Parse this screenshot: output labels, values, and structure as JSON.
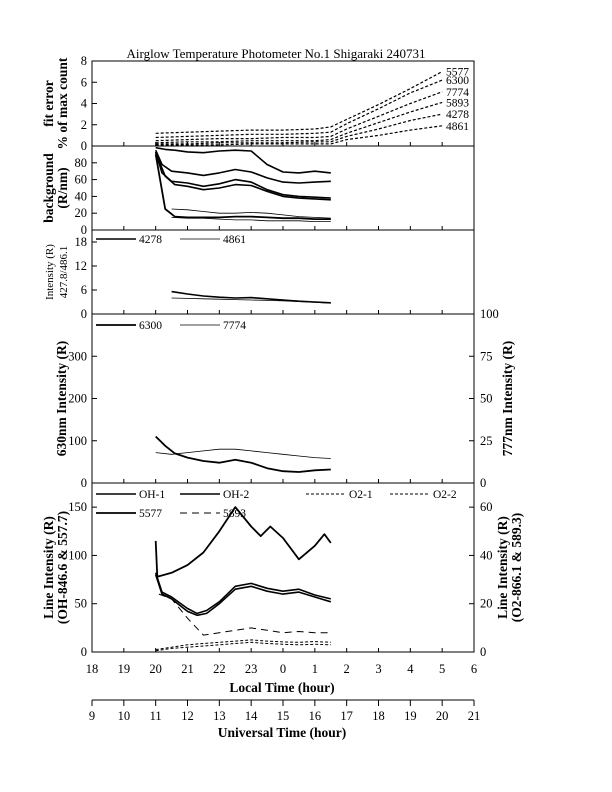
{
  "title": "Airglow Temperature Photometer No.1  Shigaraki  240731",
  "x_axes": {
    "local": {
      "label": "Local Time (hour)",
      "ticks": [
        "18",
        "19",
        "20",
        "21",
        "22",
        "23",
        "0",
        "1",
        "2",
        "3",
        "4",
        "5",
        "6"
      ]
    },
    "universal": {
      "label": "Universal Time (hour)",
      "ticks": [
        "9",
        "10",
        "11",
        "12",
        "13",
        "14",
        "15",
        "16",
        "17",
        "18",
        "19",
        "20",
        "21"
      ]
    }
  },
  "chart_data": [
    {
      "type": "line",
      "panel": "fit-error",
      "ylabel_lines": [
        "fit error",
        "% of max count"
      ],
      "ylim": [
        0,
        8
      ],
      "yticks": [
        "0",
        "2",
        "4",
        "6",
        "8"
      ],
      "xlim": [
        18,
        30
      ],
      "series": [
        {
          "name": "5577",
          "dash": "3,2",
          "x": [
            20,
            21,
            22,
            23,
            24,
            25,
            25.5,
            26,
            27,
            28,
            29
          ],
          "y": [
            1.2,
            1.3,
            1.4,
            1.5,
            1.5,
            1.6,
            1.8,
            2.5,
            3.9,
            5.4,
            7.0
          ]
        },
        {
          "name": "6300",
          "dash": "3,2",
          "x": [
            20,
            21,
            22,
            23,
            24,
            25,
            25.5,
            26,
            27,
            28,
            29
          ],
          "y": [
            0.8,
            0.9,
            1.0,
            1.1,
            1.1,
            1.2,
            1.3,
            2.1,
            3.5,
            5.0,
            6.2
          ]
        },
        {
          "name": "7774",
          "dash": "3,2",
          "x": [
            20,
            21,
            22,
            23,
            24,
            25,
            25.5,
            26,
            27,
            28,
            29
          ],
          "y": [
            0.5,
            0.6,
            0.7,
            0.7,
            0.8,
            0.8,
            0.9,
            1.6,
            2.8,
            4.0,
            5.1
          ]
        },
        {
          "name": "5893",
          "dash": "3,2",
          "x": [
            20,
            21,
            22,
            23,
            24,
            25,
            25.5,
            26,
            27,
            28,
            29
          ],
          "y": [
            0.3,
            0.4,
            0.4,
            0.5,
            0.5,
            0.5,
            0.6,
            1.2,
            2.2,
            3.2,
            4.1
          ]
        },
        {
          "name": "4278",
          "dash": "3,2",
          "x": [
            20,
            21,
            22,
            23,
            24,
            25,
            25.5,
            26,
            27,
            28,
            29
          ],
          "y": [
            0.2,
            0.2,
            0.3,
            0.3,
            0.3,
            0.4,
            0.4,
            0.9,
            1.6,
            2.4,
            3.0
          ]
        },
        {
          "name": "4861",
          "dash": "3,2",
          "x": [
            20,
            21,
            22,
            23,
            24,
            25,
            25.5,
            26,
            27,
            28,
            29
          ],
          "y": [
            0.1,
            0.1,
            0.1,
            0.2,
            0.2,
            0.2,
            0.2,
            0.6,
            1.0,
            1.5,
            1.9
          ]
        }
      ]
    },
    {
      "type": "line",
      "panel": "background",
      "ylabel_lines": [
        "background",
        "(R/nm)"
      ],
      "ylim": [
        0,
        100
      ],
      "yticks": [
        "0",
        "20",
        "40",
        "60",
        "80"
      ],
      "xlim": [
        18,
        30
      ],
      "series": [
        {
          "x": [
            20,
            20.3,
            20.6,
            21,
            21.5,
            22,
            22.5,
            23,
            23.5,
            24,
            24.5,
            25,
            25.5
          ],
          "y": [
            98,
            96,
            95,
            93,
            92,
            94,
            95,
            94,
            78,
            69,
            68,
            70,
            68
          ],
          "width": 1.6
        },
        {
          "x": [
            20,
            20.2,
            20.5,
            21,
            21.5,
            22,
            22.5,
            23,
            23.5,
            24,
            24.5,
            25,
            25.5
          ],
          "y": [
            95,
            78,
            70,
            68,
            65,
            68,
            72,
            69,
            62,
            57,
            56,
            57,
            58
          ],
          "width": 1.6
        },
        {
          "x": [
            20,
            20.2,
            20.5,
            21,
            21.5,
            22,
            22.5,
            23,
            23.5,
            24,
            24.5,
            25,
            25.5
          ],
          "y": [
            93,
            68,
            58,
            56,
            52,
            55,
            60,
            57,
            48,
            42,
            40,
            39,
            38
          ],
          "width": 1.6
        },
        {
          "x": [
            20,
            20.3,
            20.6,
            21,
            21.5,
            22,
            22.5,
            23,
            23.5,
            24,
            24.5,
            25,
            25.5
          ],
          "y": [
            92,
            64,
            54,
            52,
            48,
            50,
            54,
            53,
            46,
            40,
            38,
            37,
            36
          ],
          "width": 1.6
        },
        {
          "x": [
            20,
            20.3,
            20.6,
            21,
            21.5,
            22,
            22.5,
            23,
            23.5,
            24,
            24.5,
            25,
            25.5
          ],
          "y": [
            90,
            25,
            16,
            15,
            15,
            15,
            16,
            16,
            15,
            14,
            14,
            13,
            13
          ],
          "width": 1.8
        },
        {
          "x": [
            20.5,
            21,
            21.5,
            22,
            22.5,
            23,
            23.5,
            24,
            24.5,
            25,
            25.5
          ],
          "y": [
            25,
            24,
            22,
            20,
            20,
            21,
            20,
            18,
            16,
            15,
            14
          ],
          "width": 0.8
        },
        {
          "x": [
            20.5,
            21,
            21.5,
            22,
            22.5,
            23,
            23.5,
            24,
            24.5,
            25,
            25.5
          ],
          "y": [
            15,
            14,
            14,
            13,
            12,
            12,
            11,
            11,
            11,
            10,
            10
          ],
          "width": 0.8
        }
      ]
    },
    {
      "type": "line",
      "panel": "blue-lines",
      "ylabel_lines": [
        "Intensity (R)",
        "427.8/486.1"
      ],
      "ylim": [
        0,
        21
      ],
      "yticks": [
        "0",
        "6",
        "12",
        "18"
      ],
      "xlim": [
        18,
        30
      ],
      "series": [
        {
          "name": "4278",
          "x": [
            20.5,
            21,
            21.5,
            22,
            22.5,
            23,
            23.5,
            24,
            24.5,
            25,
            25.5
          ],
          "y": [
            5.6,
            5.0,
            4.5,
            4.2,
            4.0,
            4.1,
            3.8,
            3.5,
            3.2,
            3.0,
            2.8
          ],
          "width": 1.6
        },
        {
          "name": "4861",
          "x": [
            20.5,
            21,
            21.5,
            22,
            22.5,
            23,
            23.5,
            24,
            24.5,
            25,
            25.5
          ],
          "y": [
            4.0,
            3.9,
            3.8,
            3.7,
            3.6,
            3.5,
            3.4,
            3.3,
            3.1,
            2.9,
            2.7
          ],
          "width": 0.8
        }
      ]
    },
    {
      "type": "line",
      "panel": "oxygen-lines",
      "ylabel": "630nm Intensity (R)",
      "ylim": [
        0,
        400
      ],
      "yticks": [
        "0",
        "100",
        "200",
        "300"
      ],
      "y2label": "777nm Intensity (R)",
      "y2lim": [
        0,
        100
      ],
      "y2ticks": [
        "0",
        "25",
        "50",
        "75",
        "100"
      ],
      "xlim": [
        18,
        30
      ],
      "series": [
        {
          "name": "6300",
          "axis": "left",
          "x": [
            20,
            20.3,
            20.6,
            21,
            21.5,
            22,
            22.5,
            23,
            23.5,
            24,
            24.5,
            25,
            25.5
          ],
          "y": [
            110,
            88,
            70,
            60,
            52,
            48,
            55,
            48,
            35,
            28,
            26,
            30,
            32
          ],
          "width": 1.8
        },
        {
          "name": "7774",
          "axis": "right",
          "x": [
            20,
            20.5,
            21,
            21.5,
            22,
            22.5,
            23,
            23.5,
            24,
            24.5,
            25,
            25.5
          ],
          "y": [
            18,
            17,
            18,
            19,
            20,
            20,
            19,
            18,
            17,
            16,
            15,
            14.5
          ],
          "width": 0.8
        }
      ]
    },
    {
      "type": "line",
      "panel": "line-intensities",
      "ylabel_lines": [
        "Line Intensity (R)",
        "(OH-846.6 & 557.7)"
      ],
      "ylim": [
        0,
        175
      ],
      "yticks": [
        "0",
        "50",
        "100",
        "150"
      ],
      "y2label_lines": [
        "Line Intensity (R)",
        "(O2-866.1 & 589.3)"
      ],
      "y2lim": [
        0,
        70
      ],
      "y2ticks": [
        "0",
        "20",
        "40",
        "60"
      ],
      "xlim": [
        18,
        30
      ],
      "legend": [
        "OH-1",
        "OH-2",
        "O2-1",
        "O2-2",
        "5577",
        "5893"
      ],
      "series": [
        {
          "name": "OH-1",
          "axis": "left",
          "x": [
            20,
            20.2,
            20.5,
            21,
            21.3,
            21.6,
            22,
            22.5,
            23,
            23.5,
            24,
            24.5,
            25,
            25.5
          ],
          "y": [
            80,
            60,
            55,
            42,
            38,
            40,
            50,
            65,
            68,
            63,
            60,
            62,
            57,
            52
          ],
          "width": 1.6
        },
        {
          "name": "OH-2",
          "axis": "left",
          "x": [
            20,
            20.2,
            20.5,
            21,
            21.3,
            21.6,
            22,
            22.5,
            23,
            23.5,
            24,
            24.5,
            25,
            25.5
          ],
          "y": [
            82,
            62,
            57,
            45,
            40,
            43,
            52,
            68,
            71,
            66,
            63,
            65,
            59,
            55
          ],
          "width": 1.6
        },
        {
          "name": "O2-1",
          "axis": "right",
          "dash": "3,2",
          "x": [
            20,
            20.5,
            21,
            21.5,
            22,
            22.5,
            23,
            23.5,
            24,
            24.5,
            25,
            25.5
          ],
          "y": [
            0.5,
            1.5,
            2.0,
            2.5,
            3.0,
            3.5,
            4.0,
            3.5,
            3.2,
            3.0,
            3.2,
            3.0
          ],
          "width": 1.0
        },
        {
          "name": "O2-2",
          "axis": "right",
          "dash": "3,2",
          "x": [
            20,
            20.5,
            21,
            21.5,
            22,
            22.5,
            23,
            23.5,
            24,
            24.5,
            25,
            25.5
          ],
          "y": [
            1.0,
            2.0,
            3.0,
            3.5,
            4.0,
            4.5,
            5.0,
            4.5,
            4.2,
            4.0,
            4.3,
            4.0
          ],
          "width": 1.0
        },
        {
          "name": "5577",
          "axis": "left",
          "x": [
            20,
            20.05,
            20.5,
            21,
            21.5,
            22,
            22.5,
            23,
            23.3,
            23.6,
            24,
            24.5,
            25,
            25.3,
            25.5
          ],
          "y": [
            115,
            78,
            82,
            90,
            103,
            125,
            150,
            130,
            120,
            130,
            118,
            96,
            110,
            122,
            113
          ],
          "width": 1.8
        },
        {
          "name": "5893",
          "axis": "right",
          "dash": "7,5",
          "x": [
            20.1,
            20.5,
            21,
            21.5,
            22,
            22.5,
            23,
            23.5,
            24,
            24.5,
            25,
            25.5
          ],
          "y": [
            24,
            22,
            14,
            7,
            8,
            9,
            10,
            9,
            8,
            8.5,
            8,
            8
          ],
          "width": 1.0
        }
      ]
    }
  ]
}
